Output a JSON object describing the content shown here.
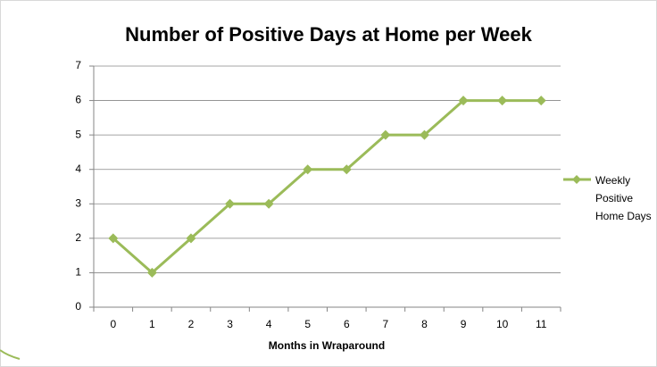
{
  "chart_data": {
    "type": "line",
    "title": "Number of Positive Days at Home per Week",
    "x_label": "Months in Wraparound",
    "categories": [
      "0",
      "1",
      "2",
      "3",
      "4",
      "5",
      "6",
      "7",
      "8",
      "9",
      "10",
      "11"
    ],
    "series": [
      {
        "name": "Weekly Positive Home Days",
        "color": "#9bbb59",
        "values": [
          2,
          1,
          2,
          3,
          3,
          4,
          4,
          5,
          5,
          6,
          6,
          6
        ]
      }
    ],
    "ylim": [
      0,
      7
    ],
    "yticks": [
      0,
      1,
      2,
      3,
      4,
      5,
      6,
      7
    ],
    "grid": true,
    "legend": "right"
  }
}
